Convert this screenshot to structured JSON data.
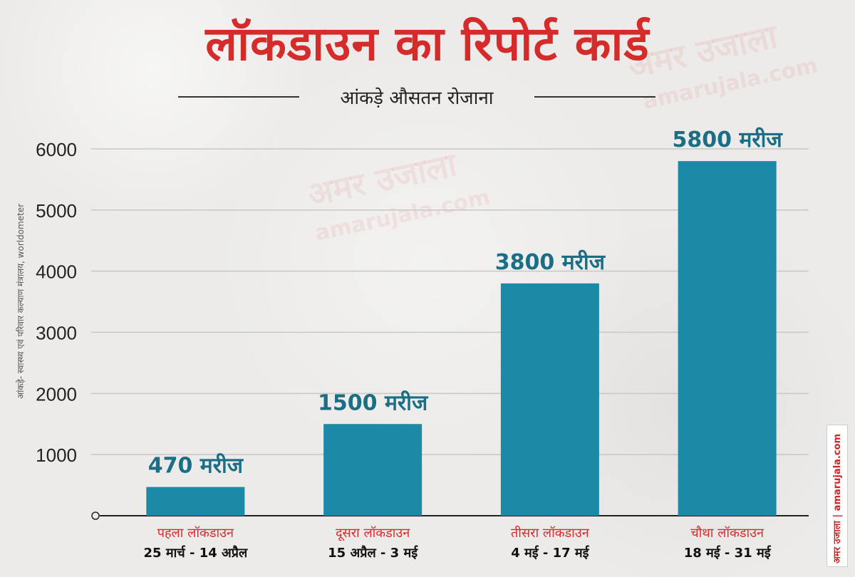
{
  "header": {
    "title": "लॉकडाउन का रिपोर्ट कार्ड",
    "subtitle": "आंकड़े औसतन रोजाना"
  },
  "source_note": "आंकड़े- स्वास्थ्य एवं परिवार कल्याण मंत्रालय, worldometer",
  "brand": {
    "side_label": "अमर उजाला | amarujala.com",
    "watermarks": [
      "अमर उजाला",
      "amarujala.com",
      "अमर उजाला",
      "amarujala.com"
    ]
  },
  "colors": {
    "bar": "#1a8aa6",
    "title": "#d62b2b",
    "category": "#d62b2b",
    "value_label": "#1a6f86"
  },
  "chart_data": {
    "type": "bar",
    "title": "लॉकडाउन का रिपोर्ट कार्ड",
    "subtitle": "आंकड़े औसतन रोजाना",
    "categories": [
      "पहला लॉकडाउन",
      "दूसरा लॉकडाउन",
      "तीसरा लॉकडाउन",
      "चौथा लॉकडाउन"
    ],
    "date_ranges": [
      "25 मार्च - 14 अप्रैल",
      "15 अप्रैल - 3 मई",
      "4 मई - 17 मई",
      "18 मई - 31 मई"
    ],
    "values": [
      470,
      1500,
      3800,
      5800
    ],
    "value_labels": [
      "470 मरीज",
      "1500 मरीज",
      "3800 मरीज",
      "5800 मरीज"
    ],
    "y_ticks": [
      0,
      1000,
      2000,
      3000,
      4000,
      5000,
      6000
    ],
    "y_tick_labels": [
      "0",
      "1000",
      "2000",
      "3000",
      "4000",
      "5000",
      "6000"
    ],
    "ylim": [
      0,
      6000
    ],
    "grid": true,
    "xlabel": "",
    "ylabel": ""
  }
}
